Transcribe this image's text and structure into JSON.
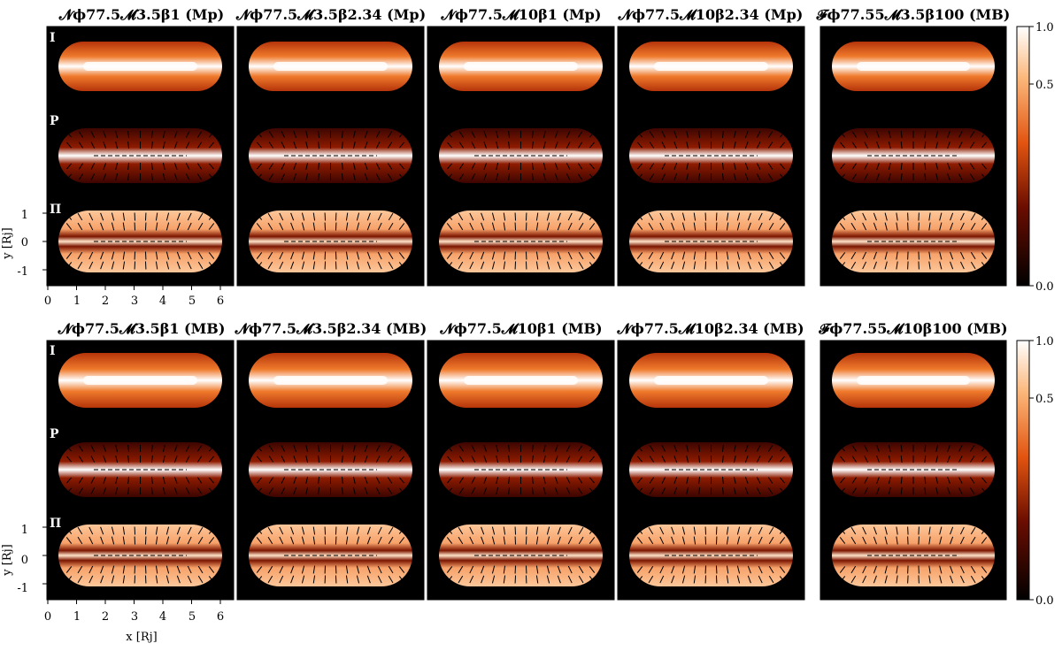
{
  "figure": {
    "rows": [
      {
        "panels": [
          {
            "title": "𝓝ϕ77.5𝓜3.5β1 (Mp)",
            "label_i": "I",
            "label_p": "P",
            "label_pi": "Π"
          },
          {
            "title": "𝓝ϕ77.5𝓜3.5β2.34 (Mp)"
          },
          {
            "title": "𝓝ϕ77.5𝓜10β1 (Mp)"
          },
          {
            "title": "𝓝ϕ77.5𝓜10β2.34 (Mp)"
          },
          {
            "title": "𝓕ϕ77.55𝓜3.5β100 (MB)"
          }
        ]
      },
      {
        "panels": [
          {
            "title": "𝓝ϕ77.5𝓜3.5β1 (MB)",
            "label_i": "I",
            "label_p": "P",
            "label_pi": "Π"
          },
          {
            "title": "𝓝ϕ77.5𝓜3.5β2.34 (MB)"
          },
          {
            "title": "𝓝ϕ77.5𝓜10β1 (MB)"
          },
          {
            "title": "𝓝ϕ77.5𝓜10β2.34 (MB)"
          },
          {
            "title": "𝓕ϕ77.55𝓜10β100 (MB)"
          }
        ]
      }
    ],
    "x_axis": {
      "label": "x [Rj]",
      "ticks": [
        "0",
        "1",
        "2",
        "3",
        "4",
        "5",
        "6"
      ]
    },
    "y_axis": {
      "label": "y [Rj]",
      "ticks": [
        "1",
        "0",
        "-1"
      ]
    },
    "colorbar": {
      "ticks": [
        "1.0",
        "0.5",
        "0.0"
      ]
    },
    "colors": {
      "background": "#000000",
      "hot_low": "#000000",
      "hot_mid": "#e25410",
      "hot_high": "#ffffff",
      "pol_fill": "#fcc79a"
    }
  }
}
